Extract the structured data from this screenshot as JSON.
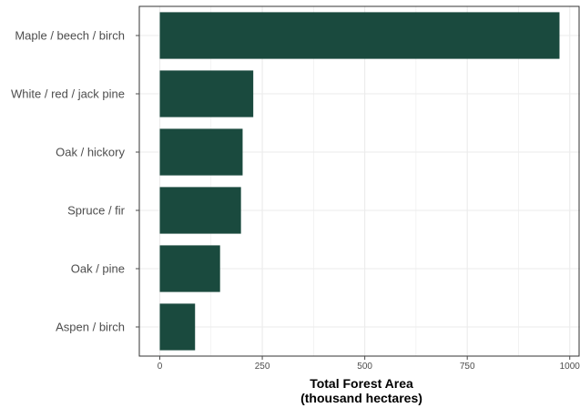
{
  "colors": {
    "bar": "#1a4a3e",
    "grid": "#ebebeb",
    "panel_border": "#333333",
    "tick": "#4d4d4d"
  },
  "chart_data": {
    "type": "bar",
    "orientation": "horizontal",
    "categories": [
      "Maple / beech / birch",
      "White / red / jack pine",
      "Oak / hickory",
      "Spruce / fir",
      "Oak / pine",
      "Aspen / birch"
    ],
    "values": [
      975,
      228,
      202,
      198,
      147,
      86
    ],
    "xlim": [
      -50,
      1025
    ],
    "xticks": [
      0,
      250,
      500,
      750,
      1000
    ],
    "xtick_labels": [
      "0",
      "250",
      "500",
      "750",
      "1000"
    ],
    "xlabel": [
      "Total Forest Area",
      "(thousand hectares)"
    ],
    "ylabel": "",
    "title": "",
    "grid": true,
    "legend": "none"
  }
}
